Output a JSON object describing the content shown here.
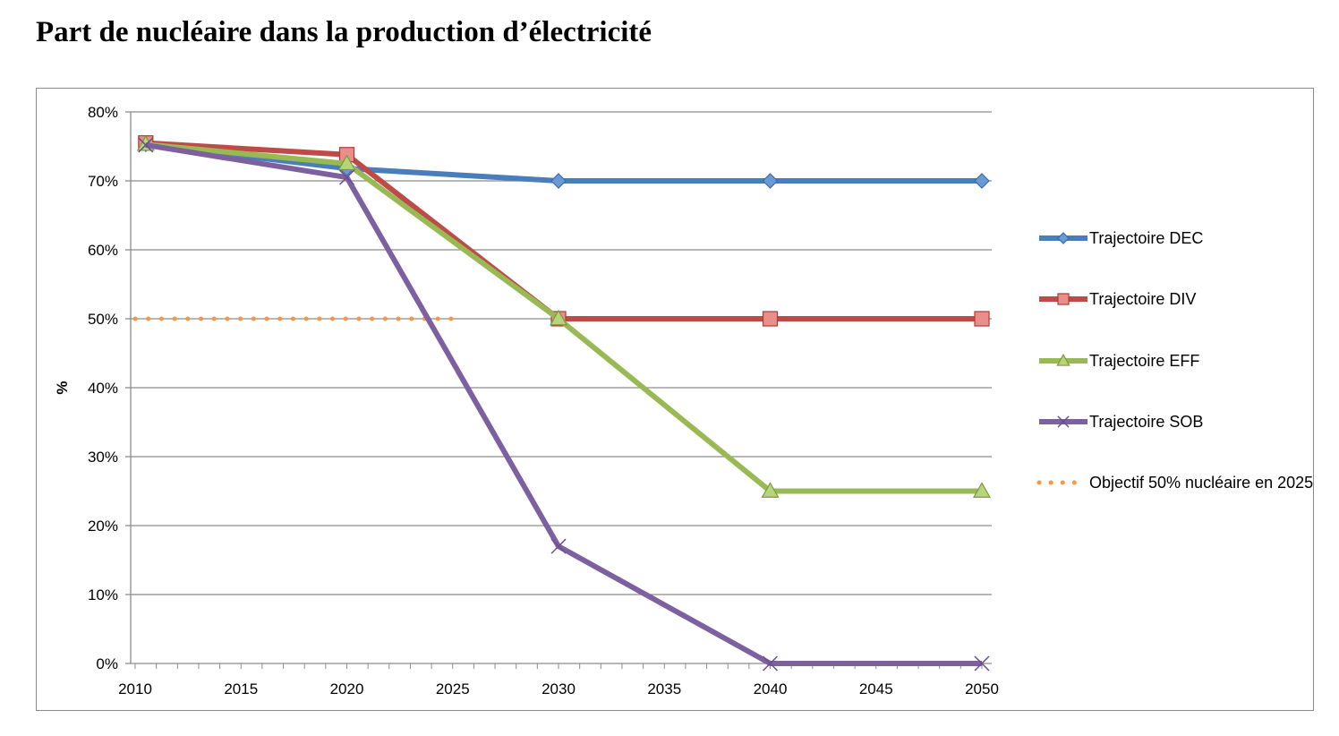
{
  "title": "Part de nucléaire dans la production d’électricité",
  "chart_data": {
    "type": "line",
    "title": "Part de nucléaire dans la production d’électricité",
    "xlabel": "",
    "ylabel": "%",
    "xlim": [
      2010,
      2050
    ],
    "ylim": [
      0,
      80
    ],
    "x_ticks": [
      2010,
      2015,
      2020,
      2025,
      2030,
      2035,
      2040,
      2045,
      2050
    ],
    "x_tick_labels": [
      "2010",
      "2015",
      "2020",
      "2025",
      "2030",
      "2035",
      "2040",
      "2045",
      "2050"
    ],
    "y_ticks": [
      0,
      10,
      20,
      30,
      40,
      50,
      60,
      70,
      80
    ],
    "y_tick_labels": [
      "0%",
      "10%",
      "20%",
      "30%",
      "40%",
      "50%",
      "60%",
      "70%",
      "80%"
    ],
    "grid": "horizontal",
    "legend_position": "right",
    "series": [
      {
        "name": "Trajectoire DEC",
        "color": "#4a7ebb",
        "marker": "diamond",
        "points": [
          [
            2010.5,
            75.3
          ],
          [
            2020,
            71.8
          ],
          [
            2030,
            70
          ],
          [
            2040,
            70
          ],
          [
            2050,
            70
          ]
        ]
      },
      {
        "name": "Trajectoire DIV",
        "color": "#be4b48",
        "marker": "square",
        "points": [
          [
            2010.5,
            75.5
          ],
          [
            2020,
            73.8
          ],
          [
            2030,
            50
          ],
          [
            2040,
            50
          ],
          [
            2050,
            50
          ]
        ]
      },
      {
        "name": "Trajectoire EFF",
        "color": "#98b954",
        "marker": "triangle",
        "points": [
          [
            2010.5,
            75.3
          ],
          [
            2020,
            72.5
          ],
          [
            2030,
            50
          ],
          [
            2040,
            25
          ],
          [
            2050,
            25
          ]
        ]
      },
      {
        "name": "Trajectoire SOB",
        "color": "#7d60a0",
        "marker": "x",
        "points": [
          [
            2010.5,
            75.2
          ],
          [
            2020,
            70.5
          ],
          [
            2030,
            17
          ],
          [
            2040,
            0
          ],
          [
            2050,
            0
          ]
        ]
      },
      {
        "name": "Objectif 50% nucléaire en 2025",
        "color": "#f79646",
        "style": "dotted",
        "points": [
          [
            2010,
            50
          ],
          [
            2025,
            50
          ]
        ]
      }
    ]
  }
}
